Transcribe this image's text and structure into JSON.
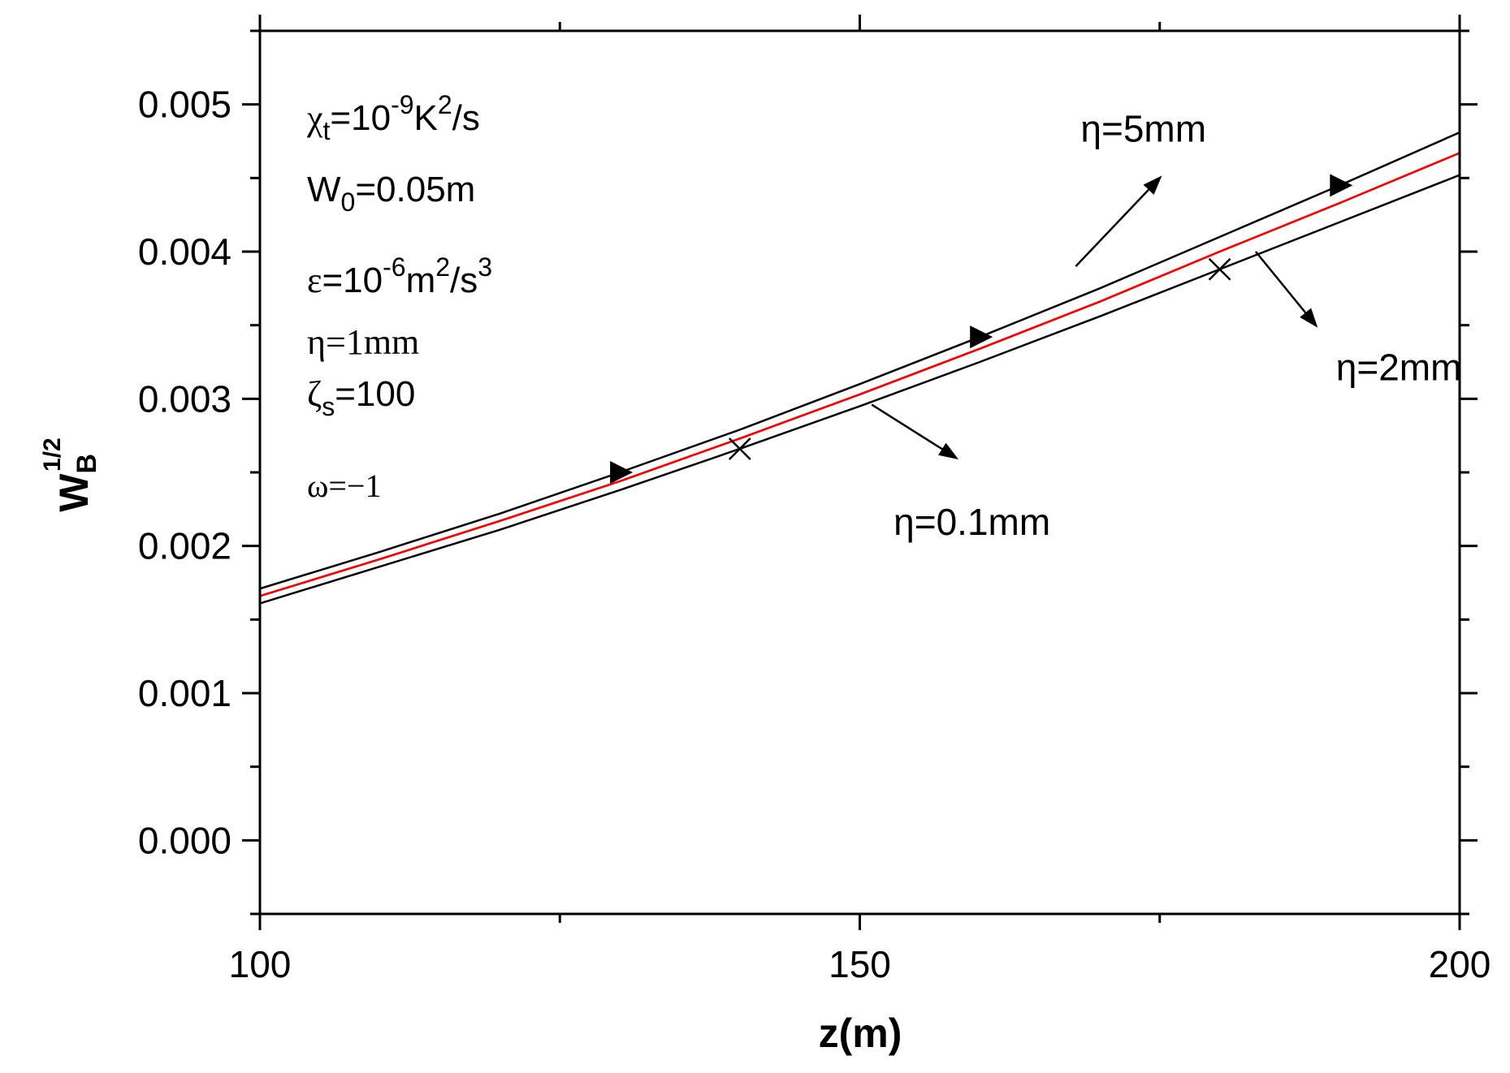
{
  "chart_data": {
    "type": "line",
    "xlabel": "z(m)",
    "ylabel": {
      "base": "W",
      "sup": "1/2",
      "sub": "B"
    },
    "xlim": [
      100,
      200
    ],
    "ylim": [
      -0.0005,
      0.0055
    ],
    "x_ticks": [
      100,
      150,
      200
    ],
    "x_tick_labels": [
      "100",
      "150",
      "200"
    ],
    "y_ticks": [
      0.0,
      0.001,
      0.002,
      0.003,
      0.004,
      0.005
    ],
    "y_tick_labels": [
      "0.000",
      "0.001",
      "0.002",
      "0.003",
      "0.004",
      "0.005"
    ],
    "grid": false,
    "x": [
      100,
      110,
      120,
      130,
      140,
      150,
      160,
      170,
      180,
      190,
      200
    ],
    "series": [
      {
        "name": "η=5mm",
        "color": "#000000",
        "marker": "triangle-right",
        "values": [
          0.00171,
          0.00196,
          0.00222,
          0.0025,
          0.00279,
          0.0031,
          0.00342,
          0.00375,
          0.0041,
          0.00445,
          0.00481
        ],
        "marker_x": [
          130,
          160,
          190
        ]
      },
      {
        "name": "η=1mm",
        "color": "#ff0000",
        "marker": "none",
        "values": [
          0.00166,
          0.00191,
          0.00217,
          0.00244,
          0.00273,
          0.00303,
          0.00334,
          0.00366,
          0.004,
          0.00433,
          0.00467
        ],
        "marker_x": []
      },
      {
        "name": "η=2mm",
        "color": "#000000",
        "marker": "none",
        "values": [
          0.00166,
          0.00191,
          0.00217,
          0.00244,
          0.00273,
          0.00303,
          0.00334,
          0.00366,
          0.004,
          0.00433,
          0.00467
        ],
        "marker_x": []
      },
      {
        "name": "η=0.1mm",
        "color": "#000000",
        "marker": "cross",
        "values": [
          0.00161,
          0.00186,
          0.00211,
          0.00238,
          0.00266,
          0.00295,
          0.00325,
          0.00356,
          0.00388,
          0.0042,
          0.00452
        ],
        "marker_x": [
          140,
          180
        ]
      }
    ],
    "parameter_box": [
      {
        "sym": "χ",
        "sub": "t",
        "text": "=10",
        "sup": "-9",
        "tail": "K",
        "sup2": "2",
        "tail2": "/s"
      },
      {
        "sym": "W",
        "sub": "0",
        "text": "=0.05m"
      },
      {
        "sym": "ε",
        "text": "=10",
        "sup": "-6",
        "tail": "m",
        "sup2": "2",
        "tail2": "/s",
        "sup3": "3"
      },
      {
        "sym": "η",
        "text": "=1mm"
      },
      {
        "sym": "ζ",
        "sub": "s",
        "text": "=100"
      },
      {
        "sym": "ω",
        "text": "=−1"
      }
    ],
    "annotations": [
      {
        "text": "η=5mm",
        "arrow_from": [
          168,
          0.0039
        ],
        "arrow_to": [
          175,
          0.0045
        ]
      },
      {
        "text": "η=2mm",
        "arrow_from": [
          183,
          0.004
        ],
        "arrow_to": [
          188,
          0.0035
        ]
      },
      {
        "text": "η=0.1mm",
        "arrow_from": [
          151,
          0.00296
        ],
        "arrow_to": [
          158,
          0.0026
        ]
      }
    ]
  }
}
